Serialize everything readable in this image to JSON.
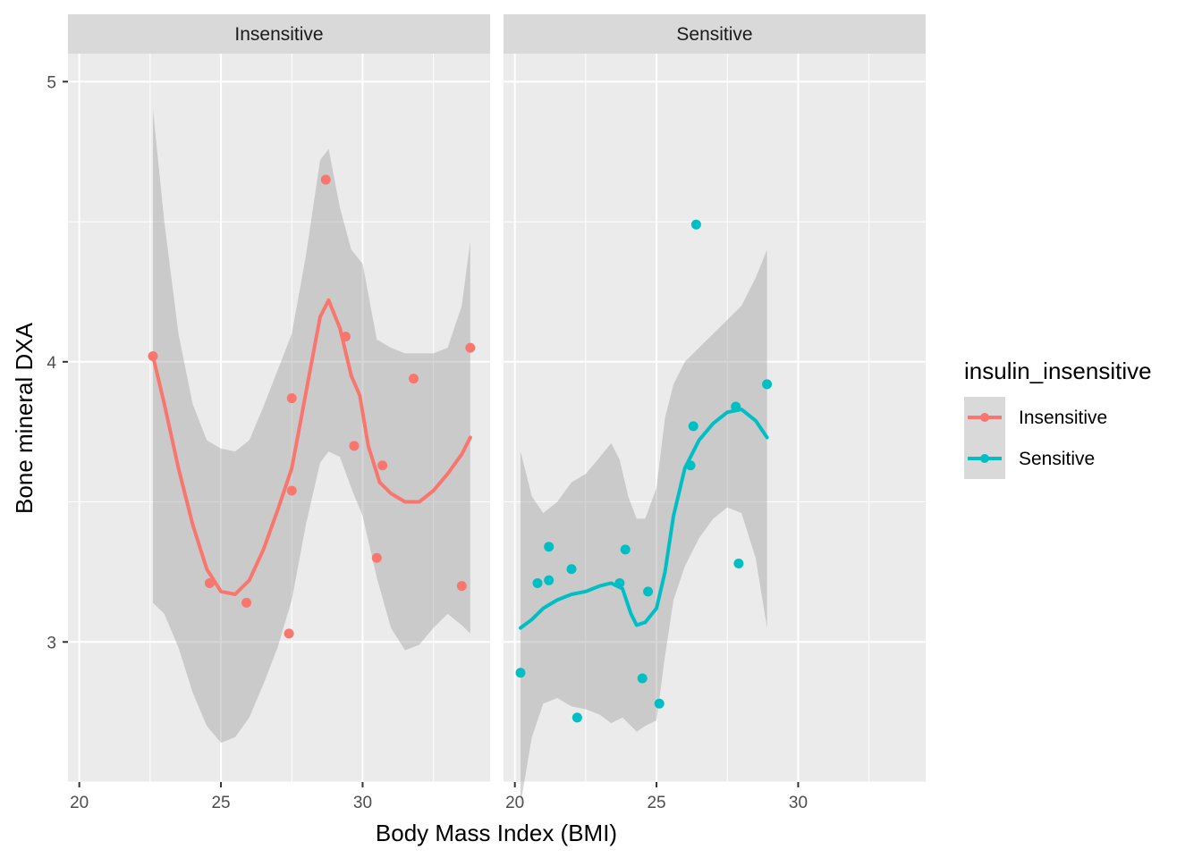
{
  "chart_data": {
    "type": "scatter",
    "xlabel": "Body Mass Index (BMI)",
    "ylabel": "Bone mineral DXA",
    "xlim": [
      19.6,
      34.5
    ],
    "ylim": [
      2.5,
      5.1
    ],
    "x_ticks": [
      20,
      25,
      30
    ],
    "y_ticks": [
      3,
      4,
      5
    ],
    "grid": true,
    "legend": {
      "title": "insulin_insensitive",
      "placement": "right",
      "entries": [
        "Insensitive",
        "Sensitive"
      ]
    },
    "colors": {
      "Insensitive": "#F8766D",
      "Sensitive": "#00BFC4"
    },
    "panels": [
      {
        "name": "Insensitive",
        "points": [
          [
            22.6,
            4.02
          ],
          [
            24.6,
            3.21
          ],
          [
            25.9,
            3.14
          ],
          [
            27.4,
            3.03
          ],
          [
            27.5,
            3.87
          ],
          [
            27.5,
            3.54
          ],
          [
            28.7,
            4.65
          ],
          [
            29.4,
            4.09
          ],
          [
            29.7,
            3.7
          ],
          [
            30.5,
            3.3
          ],
          [
            30.7,
            3.63
          ],
          [
            31.8,
            3.94
          ],
          [
            33.5,
            3.2
          ],
          [
            33.8,
            4.05
          ]
        ],
        "smooth": [
          [
            22.6,
            4.02
          ],
          [
            23.0,
            3.85
          ],
          [
            23.5,
            3.62
          ],
          [
            24.0,
            3.42
          ],
          [
            24.5,
            3.26
          ],
          [
            25.0,
            3.18
          ],
          [
            25.5,
            3.17
          ],
          [
            26.0,
            3.22
          ],
          [
            26.5,
            3.33
          ],
          [
            27.0,
            3.47
          ],
          [
            27.5,
            3.62
          ],
          [
            28.0,
            3.89
          ],
          [
            28.5,
            4.16
          ],
          [
            28.8,
            4.22
          ],
          [
            29.2,
            4.12
          ],
          [
            29.6,
            3.95
          ],
          [
            29.9,
            3.88
          ],
          [
            30.2,
            3.7
          ],
          [
            30.6,
            3.57
          ],
          [
            31.0,
            3.53
          ],
          [
            31.5,
            3.5
          ],
          [
            32.0,
            3.5
          ],
          [
            32.5,
            3.54
          ],
          [
            33.0,
            3.6
          ],
          [
            33.5,
            3.67
          ],
          [
            33.8,
            3.73
          ]
        ],
        "ribbon_upper": [
          [
            22.6,
            4.9
          ],
          [
            23.0,
            4.5
          ],
          [
            23.5,
            4.1
          ],
          [
            24.0,
            3.85
          ],
          [
            24.5,
            3.72
          ],
          [
            25.0,
            3.69
          ],
          [
            25.5,
            3.68
          ],
          [
            26.0,
            3.72
          ],
          [
            26.5,
            3.84
          ],
          [
            27.0,
            3.97
          ],
          [
            27.5,
            4.1
          ],
          [
            28.0,
            4.38
          ],
          [
            28.5,
            4.72
          ],
          [
            28.8,
            4.76
          ],
          [
            29.2,
            4.55
          ],
          [
            29.6,
            4.4
          ],
          [
            30.0,
            4.35
          ],
          [
            30.5,
            4.08
          ],
          [
            31.0,
            4.05
          ],
          [
            31.5,
            4.03
          ],
          [
            32.0,
            4.03
          ],
          [
            32.5,
            4.03
          ],
          [
            33.0,
            4.05
          ],
          [
            33.5,
            4.2
          ],
          [
            33.8,
            4.43
          ]
        ],
        "ribbon_lower": [
          [
            22.6,
            3.14
          ],
          [
            23.0,
            3.1
          ],
          [
            23.5,
            2.98
          ],
          [
            24.0,
            2.82
          ],
          [
            24.5,
            2.7
          ],
          [
            25.0,
            2.64
          ],
          [
            25.5,
            2.66
          ],
          [
            26.0,
            2.73
          ],
          [
            26.5,
            2.85
          ],
          [
            27.0,
            2.98
          ],
          [
            27.5,
            3.15
          ],
          [
            28.0,
            3.42
          ],
          [
            28.5,
            3.64
          ],
          [
            28.8,
            3.68
          ],
          [
            29.2,
            3.66
          ],
          [
            29.6,
            3.55
          ],
          [
            30.0,
            3.45
          ],
          [
            30.5,
            3.23
          ],
          [
            31.0,
            3.05
          ],
          [
            31.5,
            2.97
          ],
          [
            32.0,
            2.99
          ],
          [
            32.5,
            3.05
          ],
          [
            33.0,
            3.1
          ],
          [
            33.5,
            3.06
          ],
          [
            33.8,
            3.03
          ]
        ]
      },
      {
        "name": "Sensitive",
        "points": [
          [
            20.2,
            2.89
          ],
          [
            20.8,
            3.21
          ],
          [
            21.2,
            3.34
          ],
          [
            21.2,
            3.22
          ],
          [
            22.0,
            3.26
          ],
          [
            22.2,
            2.73
          ],
          [
            23.7,
            3.21
          ],
          [
            23.9,
            3.33
          ],
          [
            24.5,
            2.87
          ],
          [
            24.7,
            3.18
          ],
          [
            25.1,
            2.78
          ],
          [
            26.2,
            3.63
          ],
          [
            26.3,
            3.77
          ],
          [
            26.4,
            4.49
          ],
          [
            27.8,
            3.84
          ],
          [
            27.9,
            3.28
          ],
          [
            28.9,
            3.92
          ]
        ],
        "smooth": [
          [
            20.2,
            3.05
          ],
          [
            20.6,
            3.08
          ],
          [
            21.0,
            3.12
          ],
          [
            21.5,
            3.15
          ],
          [
            22.0,
            3.17
          ],
          [
            22.5,
            3.18
          ],
          [
            23.0,
            3.2
          ],
          [
            23.4,
            3.21
          ],
          [
            23.8,
            3.19
          ],
          [
            24.1,
            3.1
          ],
          [
            24.3,
            3.06
          ],
          [
            24.6,
            3.07
          ],
          [
            25.0,
            3.12
          ],
          [
            25.3,
            3.25
          ],
          [
            25.6,
            3.45
          ],
          [
            26.0,
            3.62
          ],
          [
            26.5,
            3.72
          ],
          [
            27.0,
            3.78
          ],
          [
            27.5,
            3.82
          ],
          [
            28.0,
            3.83
          ],
          [
            28.5,
            3.79
          ],
          [
            28.9,
            3.73
          ]
        ],
        "ribbon_upper": [
          [
            20.2,
            3.68
          ],
          [
            20.6,
            3.52
          ],
          [
            21.0,
            3.46
          ],
          [
            21.5,
            3.5
          ],
          [
            22.0,
            3.57
          ],
          [
            22.5,
            3.6
          ],
          [
            23.0,
            3.66
          ],
          [
            23.4,
            3.71
          ],
          [
            23.7,
            3.65
          ],
          [
            24.0,
            3.52
          ],
          [
            24.3,
            3.44
          ],
          [
            24.6,
            3.44
          ],
          [
            25.0,
            3.55
          ],
          [
            25.3,
            3.8
          ],
          [
            25.6,
            3.92
          ],
          [
            26.0,
            4.0
          ],
          [
            26.5,
            4.05
          ],
          [
            27.0,
            4.1
          ],
          [
            27.5,
            4.15
          ],
          [
            28.0,
            4.2
          ],
          [
            28.5,
            4.3
          ],
          [
            28.9,
            4.4
          ]
        ],
        "ribbon_lower": [
          [
            20.2,
            2.42
          ],
          [
            20.6,
            2.66
          ],
          [
            21.0,
            2.78
          ],
          [
            21.5,
            2.8
          ],
          [
            22.0,
            2.77
          ],
          [
            22.5,
            2.76
          ],
          [
            23.0,
            2.74
          ],
          [
            23.4,
            2.71
          ],
          [
            23.8,
            2.73
          ],
          [
            24.1,
            2.7
          ],
          [
            24.3,
            2.68
          ],
          [
            24.6,
            2.7
          ],
          [
            25.0,
            2.72
          ],
          [
            25.3,
            2.95
          ],
          [
            25.6,
            3.15
          ],
          [
            26.0,
            3.27
          ],
          [
            26.5,
            3.37
          ],
          [
            27.0,
            3.44
          ],
          [
            27.5,
            3.48
          ],
          [
            28.0,
            3.46
          ],
          [
            28.5,
            3.3
          ],
          [
            28.9,
            3.05
          ]
        ]
      }
    ]
  }
}
